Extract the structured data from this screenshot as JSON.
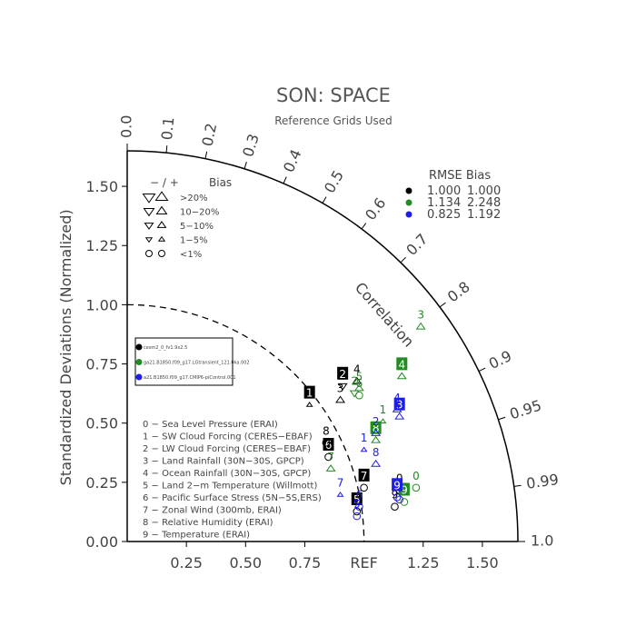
{
  "title": "SON: SPACE",
  "subtitle": "Reference Grids Used",
  "chart_data": {
    "type": "scatter",
    "subtype": "taylor-diagram",
    "ylabel": "Standardized Deviations (Normalized)",
    "xlabel_ref": "REF",
    "arc_label": "Correlation",
    "std_max": 1.65,
    "std_ticks": [
      "0.00",
      "0.25",
      "0.50",
      "0.75",
      "1.00",
      "1.25",
      "1.50"
    ],
    "x_ticks": [
      "0.25",
      "0.50",
      "0.75",
      "1.25",
      "1.50"
    ],
    "corr_ticks": [
      "0.0",
      "0.1",
      "0.2",
      "0.3",
      "0.4",
      "0.5",
      "0.6",
      "0.7",
      "0.8",
      "0.9",
      "0.95",
      "0.99",
      "1.0"
    ],
    "reference_std": 1.0,
    "rmse_bias": {
      "header": "RMSE Bias",
      "rows": [
        {
          "rmse": "1.000",
          "bias": "1.000",
          "color": "#000000"
        },
        {
          "rmse": "1.134",
          "bias": "2.248",
          "color": "#228b22"
        },
        {
          "rmse": "0.825",
          "bias": "1.192",
          "color": "#1e1ee6"
        }
      ]
    },
    "bias_legend": {
      "header": "− / +",
      "header2": "Bias",
      "rows": [
        {
          "minus": "▽",
          "plus": "△",
          "label": ">20%"
        },
        {
          "minus": "▽",
          "plus": "△",
          "label": "10−20%"
        },
        {
          "minus": "▽",
          "plus": "△",
          "label": "5−10%"
        },
        {
          "minus": "▿",
          "plus": "▵",
          "label": "1−5%"
        },
        {
          "minus": "○",
          "plus": "○",
          "label": "<1%"
        }
      ]
    },
    "cases_legend": [
      {
        "name": "cesm2_0_fv1.9x2.5",
        "color": "#000000"
      },
      {
        "name": "ga21.B1850.f09_g17.LGtransient_121.0ka.002",
        "color": "#228b22"
      },
      {
        "name": "a21.B1850.f09_g17.CMIP6-piControl.001",
        "color": "#1e1ee6"
      }
    ],
    "variables": [
      "0 − Sea Level Pressure (ERAI)",
      "1 − SW Cloud Forcing (CERES−EBAF)",
      "2 − LW Cloud Forcing (CERES−EBAF)",
      "3 − Land Rainfall (30N−30S, GPCP)",
      "4 − Ocean Rainfall (30N−30S, GPCP)",
      "5 − Land 2−m Temperature (Willmott)",
      "6 − Pacific Surface Stress (5N−5S,ERS)",
      "7 − Zonal Wind (300mb, ERAI)",
      "8 − Relative Humidity (ERAI)",
      "9 − Temperature (ERAI)"
    ],
    "series": [
      {
        "name": "cesm2_0_fv1.9x2.5",
        "color": "#000000",
        "points": [
          {
            "var": "0",
            "x": 1.15,
            "y": 0.24,
            "marker": "circle"
          },
          {
            "var": "1",
            "x": 0.77,
            "y": 0.6,
            "marker": "tri-up-s",
            "boxed": true
          },
          {
            "var": "2",
            "x": 0.91,
            "y": 0.68,
            "marker": "tri-down",
            "boxed": true
          },
          {
            "var": "3",
            "x": 0.9,
            "y": 0.62,
            "marker": "tri-up"
          },
          {
            "var": "4",
            "x": 0.97,
            "y": 0.7,
            "marker": "tri-up"
          },
          {
            "var": "5",
            "x": 0.97,
            "y": 0.15,
            "marker": "circle",
            "boxed": true
          },
          {
            "var": "6",
            "x": 0.85,
            "y": 0.38,
            "marker": "circle",
            "boxed": true
          },
          {
            "var": "7",
            "x": 1.0,
            "y": 0.25,
            "marker": "circle",
            "boxed": true
          },
          {
            "var": "8",
            "x": 0.84,
            "y": 0.44,
            "marker": "circle"
          },
          {
            "var": "9",
            "x": 1.13,
            "y": 0.17,
            "marker": "circle"
          }
        ]
      },
      {
        "name": "ga21.B1850.f09_g17.LGtransient_121.0ka.002",
        "color": "#228b22",
        "points": [
          {
            "var": "0",
            "x": 1.22,
            "y": 0.25,
            "marker": "circle"
          },
          {
            "var": "1",
            "x": 1.08,
            "y": 0.53,
            "marker": "tri-up-s"
          },
          {
            "var": "2",
            "x": 0.96,
            "y": 0.65,
            "marker": "tri-down"
          },
          {
            "var": "3",
            "x": 1.24,
            "y": 0.93,
            "marker": "tri-up"
          },
          {
            "var": "4",
            "x": 1.16,
            "y": 0.72,
            "marker": "tri-up",
            "boxed": true
          },
          {
            "var": "5",
            "x": 0.98,
            "y": 0.67,
            "marker": "tri-up"
          },
          {
            "var": "6",
            "x": 0.98,
            "y": 0.64,
            "marker": "circle"
          },
          {
            "var": "7",
            "x": 0.86,
            "y": 0.33,
            "marker": "tri-up"
          },
          {
            "var": "8",
            "x": 1.05,
            "y": 0.45,
            "marker": "tri-up",
            "boxed": true
          },
          {
            "var": "9",
            "x": 1.17,
            "y": 0.19,
            "marker": "circle",
            "boxed": true
          }
        ]
      },
      {
        "name": "a21.B1850.f09_g17.CMIP6-piControl.001",
        "color": "#1e1ee6",
        "points": [
          {
            "var": "0",
            "x": 1.15,
            "y": 0.2,
            "marker": "circle"
          },
          {
            "var": "1",
            "x": 1.0,
            "y": 0.41,
            "marker": "tri-up-s"
          },
          {
            "var": "2",
            "x": 1.05,
            "y": 0.48,
            "marker": "tri-up"
          },
          {
            "var": "3",
            "x": 1.15,
            "y": 0.55,
            "marker": "tri-up",
            "boxed": true
          },
          {
            "var": "4",
            "x": 1.14,
            "y": 0.58,
            "marker": "tri-up"
          },
          {
            "var": "5",
            "x": 0.97,
            "y": 0.13,
            "marker": "circle"
          },
          {
            "var": "6",
            "x": 0.98,
            "y": 0.17,
            "marker": "circle"
          },
          {
            "var": "7",
            "x": 0.9,
            "y": 0.22,
            "marker": "tri-up-s"
          },
          {
            "var": "8",
            "x": 1.05,
            "y": 0.35,
            "marker": "tri-up"
          },
          {
            "var": "9",
            "x": 1.14,
            "y": 0.21,
            "marker": "circle",
            "boxed": true
          }
        ]
      }
    ]
  }
}
